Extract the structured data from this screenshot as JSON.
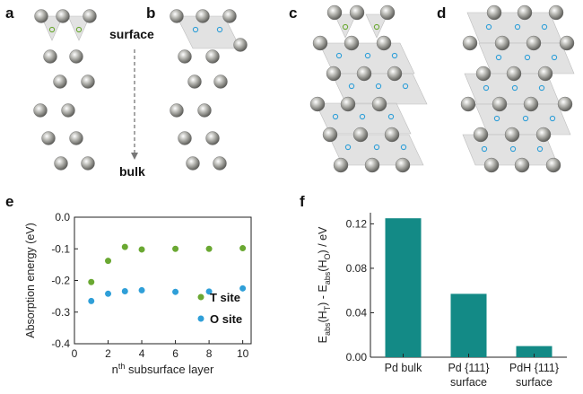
{
  "panels": {
    "a": "a",
    "b": "b",
    "c": "c",
    "d": "d",
    "e": "e",
    "f": "f"
  },
  "annotations": {
    "surface": "surface",
    "bulk": "bulk"
  },
  "colors": {
    "pd_atom": "#9a9a95",
    "t_site": "#6aa832",
    "o_site": "#2f9fd8",
    "bar": "#138a86",
    "polyhedron": "#d9d9d9"
  },
  "chart_data": [
    {
      "type": "scatter",
      "panel": "e",
      "ylabel": "Absorption energy (eV)",
      "xlabel_prefix": "n",
      "xlabel_sup": "th",
      "xlabel_suffix": " subsurface layer",
      "xlim": [
        0,
        10.5
      ],
      "ylim": [
        -0.4,
        0
      ],
      "xticks": [
        0,
        2,
        4,
        6,
        8,
        10
      ],
      "yticks": [
        0.0,
        -0.1,
        -0.2,
        -0.3,
        -0.4
      ],
      "ytick_labels": [
        "0.0",
        "-0.1",
        "-0.2",
        "-0.3",
        "-0.4"
      ],
      "grid": false,
      "legend": "bottom-right",
      "series": [
        {
          "name": "T site",
          "color": "#6aa832",
          "x": [
            1,
            2,
            3,
            4,
            6,
            8,
            10
          ],
          "y": [
            -0.205,
            -0.138,
            -0.094,
            -0.102,
            -0.1,
            -0.1,
            -0.098
          ]
        },
        {
          "name": "O site",
          "color": "#2f9fd8",
          "x": [
            1,
            2,
            3,
            4,
            6,
            8,
            10
          ],
          "y": [
            -0.265,
            -0.242,
            -0.234,
            -0.231,
            -0.236,
            -0.235,
            -0.225
          ]
        }
      ]
    },
    {
      "type": "bar",
      "panel": "f",
      "ylabel_parts": [
        "E",
        "abs",
        "(H",
        "T",
        ") - E",
        "abs",
        "(H",
        "O",
        ") / eV"
      ],
      "categories": [
        [
          "Pd bulk"
        ],
        [
          "Pd {111}",
          "surface"
        ],
        [
          "PdH {111}",
          "surface"
        ]
      ],
      "values": [
        0.125,
        0.057,
        0.01
      ],
      "ylim": [
        0,
        0.13
      ],
      "yticks": [
        0.0,
        0.04,
        0.08,
        0.12
      ],
      "ytick_labels": [
        "0.00",
        "0.04",
        "0.08",
        "0.12"
      ],
      "grid": false
    }
  ]
}
